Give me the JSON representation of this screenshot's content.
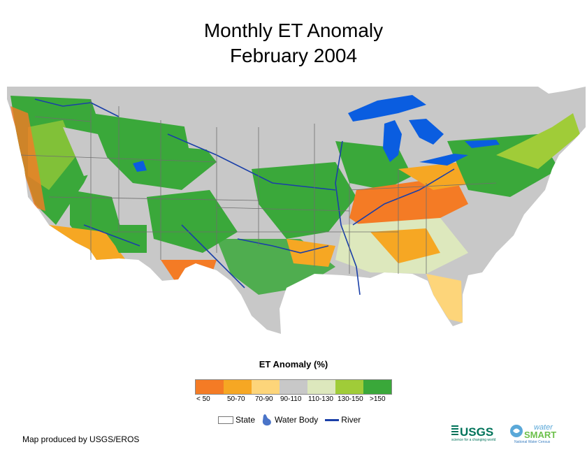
{
  "title": {
    "line1": "Monthly ET Anomaly",
    "line2": "February 2004"
  },
  "legend": {
    "title": "ET Anomaly (%)",
    "classes": [
      {
        "label": "< 50",
        "color": "#f47b25"
      },
      {
        "label": "50-70",
        "color": "#f6a723"
      },
      {
        "label": "70-90",
        "color": "#fdd57a"
      },
      {
        "label": "90-110",
        "color": "#c8c8c8"
      },
      {
        "label": "110-130",
        "color": "#dde8bd"
      },
      {
        "label": "130-150",
        "color": "#a0cc38"
      },
      {
        "label": ">150",
        "color": "#3aa83a"
      }
    ],
    "symbols": {
      "state": "State",
      "water_body": "Water Body",
      "river": "River"
    }
  },
  "colors": {
    "water": "#0a5de0",
    "river": "#1a3fa8",
    "state_border": "#6e6e6e",
    "background_gray": "#c8c8c8"
  },
  "credit": "Map produced by USGS/EROS",
  "logos": {
    "usgs": {
      "name": "USGS",
      "tagline": "science for a changing world"
    },
    "watersmart": {
      "name1": "water",
      "name2": "SMART",
      "tagline": "National Water Census"
    }
  }
}
